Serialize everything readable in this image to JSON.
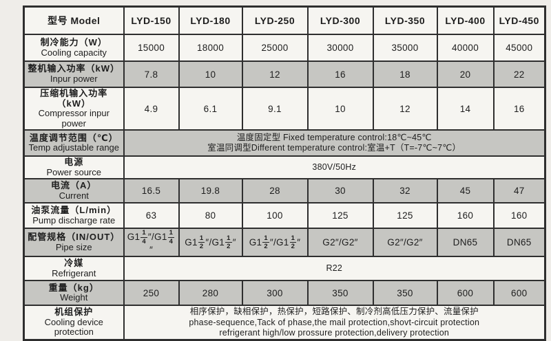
{
  "colors": {
    "page_background": "#efede9",
    "header_bg": "#c5e5f3",
    "shaded_row_bg": "#c6c6c2",
    "plain_row_bg": "#f6f5f1",
    "border": "#2e2e2e"
  },
  "table": {
    "header": [
      "型号 Model",
      "LYD-150",
      "LYD-180",
      "LYD-250",
      "LYD-300",
      "LYD-350",
      "LYD-400",
      "LYD-450"
    ],
    "rows": [
      {
        "name": "cooling-capacity",
        "label_zh": "制冷能力（W）",
        "label_en": "Cooling capacity",
        "shaded": false,
        "cells": [
          "15000",
          "18000",
          "25000",
          "30000",
          "35000",
          "40000",
          "45000"
        ]
      },
      {
        "name": "input-power",
        "label_zh": "整机输入功率（kW）",
        "label_en": "Inpur power",
        "shaded": true,
        "cells": [
          "7.8",
          "10",
          "12",
          "16",
          "18",
          "20",
          "22"
        ]
      },
      {
        "name": "compressor-input-power",
        "label_zh": "压缩机输入功率（kW）",
        "label_en": "Compressor inpur power",
        "shaded": false,
        "cells": [
          "4.9",
          "6.1",
          "9.1",
          "10",
          "12",
          "14",
          "16"
        ]
      },
      {
        "name": "temp-adjustable-range",
        "label_zh": "温度调节范围（℃）",
        "label_en": "Temp adjustable range",
        "shaded": true,
        "span_lines": [
          "温度固定型 Fixed temperature control:18℃~45℃",
          "室温同调型Different temperature control:室温+T（T=-7℃~7℃）"
        ]
      },
      {
        "name": "power-source",
        "label_zh": "电源",
        "label_en": "Power source",
        "shaded": false,
        "span_lines": [
          "380V/50Hz"
        ]
      },
      {
        "name": "current",
        "label_zh": "电流（A）",
        "label_en": "Current",
        "shaded": true,
        "cells": [
          "16.5",
          "19.8",
          "28",
          "30",
          "32",
          "45",
          "47"
        ]
      },
      {
        "name": "pump-discharge-rate",
        "label_zh": "油泵流量（L/min）",
        "label_en": "Pump discharge rate",
        "shaded": false,
        "cells": [
          "63",
          "80",
          "100",
          "125",
          "125",
          "160",
          "160"
        ]
      },
      {
        "name": "pipe-size",
        "label_zh": "配管规格（IN/OUT）",
        "label_en": "Pipe size",
        "shaded": true,
        "cells": [
          "G1{1/4}″/G1{1/4}″",
          "G1{1/2}″/G1{1/2}″",
          "G1{1/2}″/G1{1/2}″",
          "G2″/G2″",
          "G2″/G2″",
          "DN65",
          "DN65"
        ]
      },
      {
        "name": "refrigerant",
        "label_zh": "冷媒",
        "label_en": "Refrigerant",
        "shaded": false,
        "span_lines": [
          "R22"
        ]
      },
      {
        "name": "weight",
        "label_zh": "重量（kg）",
        "label_en": "Weight",
        "shaded": true,
        "cells": [
          "250",
          "280",
          "300",
          "350",
          "350",
          "600",
          "600"
        ]
      },
      {
        "name": "cooling-device-protection",
        "label_zh": "机组保护",
        "label_en": "Cooling device protection",
        "shaded": false,
        "span_lines": [
          "相序保护，缺相保护，热保护，短路保护、制冷剂高低压力保护、流量保护",
          "phase-sequence,Tack of phase,the mail protection,shovt-circuit protection",
          "refrigerant high/low prossure protection,delivery protection"
        ]
      }
    ]
  }
}
